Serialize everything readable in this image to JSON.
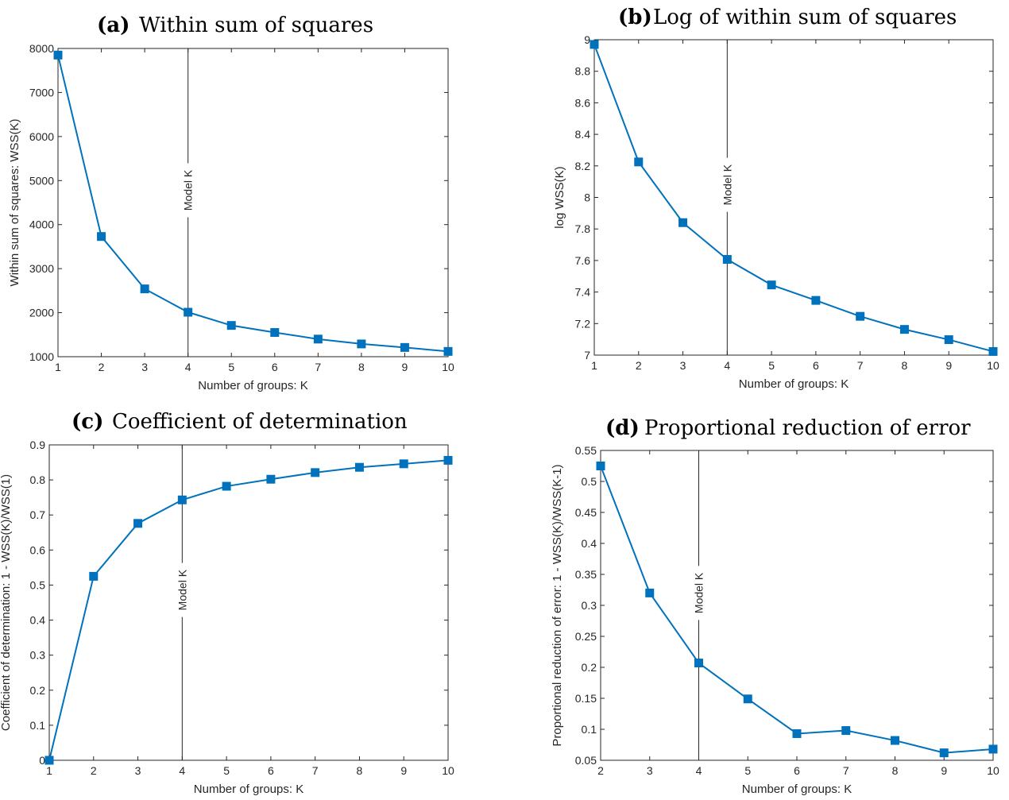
{
  "colors": {
    "series": "#0072BD",
    "axis": "#262626",
    "marker_line": "#262626"
  },
  "chart_data": [
    {
      "type": "line",
      "panel_id": "(a)",
      "title": "Within sum of squares",
      "xlabel": "Number of groups: K",
      "ylabel": "Within sum of squares: WSS(K)",
      "x": [
        1,
        2,
        3,
        4,
        5,
        6,
        7,
        8,
        9,
        10
      ],
      "y": [
        7850,
        3730,
        2540,
        2010,
        1710,
        1550,
        1400,
        1290,
        1210,
        1120
      ],
      "xlim": [
        1,
        10
      ],
      "ylim": [
        1000,
        8000
      ],
      "xticks": [
        1,
        2,
        3,
        4,
        5,
        6,
        7,
        8,
        9,
        10
      ],
      "yticks": [
        1000,
        2000,
        3000,
        4000,
        5000,
        6000,
        7000,
        8000
      ],
      "ytick_labels": [
        "1000",
        "2000",
        "3000",
        "4000",
        "5000",
        "6000",
        "7000",
        "8000"
      ],
      "vline": {
        "x": 4,
        "label": "Model K"
      },
      "grid": false
    },
    {
      "type": "line",
      "panel_id": "(b)",
      "title": "Log of within sum of squares",
      "xlabel": "Number of groups: K",
      "ylabel": "log WSS(K)",
      "x": [
        1,
        2,
        3,
        4,
        5,
        6,
        7,
        8,
        9,
        10
      ],
      "y": [
        8.97,
        8.225,
        7.84,
        7.607,
        7.445,
        7.347,
        7.246,
        7.163,
        7.098,
        7.023
      ],
      "xlim": [
        1,
        10
      ],
      "ylim": [
        7,
        9
      ],
      "xticks": [
        1,
        2,
        3,
        4,
        5,
        6,
        7,
        8,
        9,
        10
      ],
      "yticks": [
        7,
        7.2,
        7.4,
        7.6,
        7.8,
        8,
        8.2,
        8.4,
        8.6,
        8.8,
        9
      ],
      "ytick_labels": [
        "7",
        "7.2",
        "7.4",
        "7.6",
        "7.8",
        "8",
        "8.2",
        "8.4",
        "8.6",
        "8.8",
        "9"
      ],
      "vline": {
        "x": 4,
        "label": "Model K"
      },
      "grid": false
    },
    {
      "type": "line",
      "panel_id": "(c)",
      "title": "Coefficient of determination",
      "xlabel": "Number of groups: K",
      "ylabel": "Coefficient of determination: 1 - WSS(K)/WSS(1)",
      "x": [
        1,
        2,
        3,
        4,
        5,
        6,
        7,
        8,
        9,
        10
      ],
      "y": [
        0,
        0.525,
        0.676,
        0.743,
        0.782,
        0.802,
        0.821,
        0.836,
        0.846,
        0.856
      ],
      "xlim": [
        1,
        10
      ],
      "ylim": [
        0,
        0.9
      ],
      "xticks": [
        1,
        2,
        3,
        4,
        5,
        6,
        7,
        8,
        9,
        10
      ],
      "yticks": [
        0,
        0.1,
        0.2,
        0.3,
        0.4,
        0.5,
        0.6,
        0.7,
        0.8,
        0.9
      ],
      "ytick_labels": [
        "0",
        "0.1",
        "0.2",
        "0.3",
        "0.4",
        "0.5",
        "0.6",
        "0.7",
        "0.8",
        "0.9"
      ],
      "vline": {
        "x": 4,
        "label": "Model K"
      },
      "grid": false
    },
    {
      "type": "line",
      "panel_id": "(d)",
      "title": "Proportional reduction of error",
      "xlabel": "Number of groups: K",
      "ylabel": "Proportional reduction of error: 1 - WSS(K)/WSS(K-1)",
      "x": [
        2,
        3,
        4,
        5,
        6,
        7,
        8,
        9,
        10
      ],
      "y": [
        0.525,
        0.32,
        0.207,
        0.149,
        0.093,
        0.098,
        0.082,
        0.062,
        0.068
      ],
      "xlim": [
        2,
        10
      ],
      "ylim": [
        0.05,
        0.55
      ],
      "xticks": [
        2,
        3,
        4,
        5,
        6,
        7,
        8,
        9,
        10
      ],
      "yticks": [
        0.05,
        0.1,
        0.15,
        0.2,
        0.25,
        0.3,
        0.35,
        0.4,
        0.45,
        0.5,
        0.55
      ],
      "ytick_labels": [
        "0.05",
        "0.1",
        "0.15",
        "0.2",
        "0.25",
        "0.3",
        "0.35",
        "0.4",
        "0.45",
        "0.5",
        "0.55"
      ],
      "vline": {
        "x": 4,
        "label": "Model K"
      },
      "grid": false
    }
  ]
}
